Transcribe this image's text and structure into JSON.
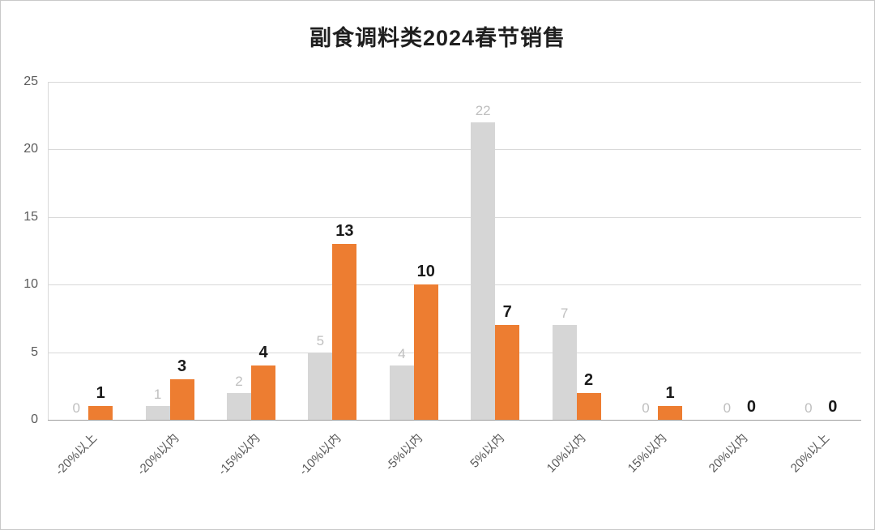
{
  "chart_data": {
    "type": "bar",
    "title": "副食调料类2024春节销售",
    "categories": [
      "-20%以上",
      "-20%以内",
      "-15%以内",
      "-10%以内",
      "-5%以内",
      "5%以内",
      "10%以内",
      "15%以内",
      "20%以内",
      "20%以上"
    ],
    "series": [
      {
        "name": "series-gray",
        "color": "#d6d6d6",
        "label_color": "#bfbfbf",
        "values": [
          0,
          1,
          2,
          5,
          4,
          22,
          7,
          0,
          0,
          0
        ]
      },
      {
        "name": "series-orange",
        "color": "#ed7d31",
        "label_color": "#1a1a1a",
        "values": [
          1,
          3,
          4,
          13,
          10,
          7,
          2,
          1,
          0,
          0
        ]
      }
    ],
    "yticks": [
      0,
      5,
      10,
      15,
      20,
      25
    ],
    "ylim": [
      0,
      25
    ],
    "grid": true,
    "legend": false,
    "colors": {
      "background": "#ffffff",
      "gridline": "#d9d9d9",
      "axis_line": "#9e9e9e",
      "tick_text": "#595959",
      "title_text": "#1f1f1f"
    }
  }
}
